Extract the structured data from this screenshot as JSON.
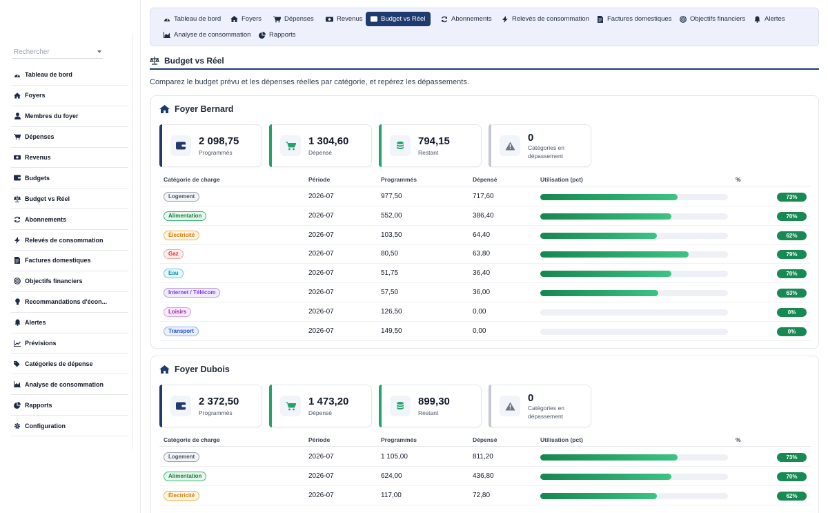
{
  "sidebar": {
    "search_placeholder": "Rechercher",
    "items": [
      {
        "label": "Tableau de bord",
        "icon": "gauge-icon"
      },
      {
        "label": "Foyers",
        "icon": "home-icon"
      },
      {
        "label": "Membres du foyer",
        "icon": "user-icon"
      },
      {
        "label": "Dépenses",
        "icon": "cart-icon"
      },
      {
        "label": "Revenus",
        "icon": "money-icon"
      },
      {
        "label": "Budgets",
        "icon": "wallet-icon"
      },
      {
        "label": "Budget vs Réel",
        "icon": "scale-icon"
      },
      {
        "label": "Abonnements",
        "icon": "sync-icon"
      },
      {
        "label": "Relevés de consommation",
        "icon": "bolt-icon"
      },
      {
        "label": "Factures domestiques",
        "icon": "invoice-icon"
      },
      {
        "label": "Objectifs financiers",
        "icon": "target-icon"
      },
      {
        "label": "Recommandations d'écon...",
        "icon": "lightbulb-icon"
      },
      {
        "label": "Alertes",
        "icon": "bell-icon"
      },
      {
        "label": "Prévisions",
        "icon": "chart-line-icon"
      },
      {
        "label": "Catégories de dépense",
        "icon": "tags-icon"
      },
      {
        "label": "Analyse de consommation",
        "icon": "chart-area-icon"
      },
      {
        "label": "Rapports",
        "icon": "pie-icon"
      },
      {
        "label": "Configuration",
        "icon": "gear-icon"
      }
    ]
  },
  "topnav": {
    "items": [
      {
        "label": "Tableau de bord",
        "icon": "gauge-icon"
      },
      {
        "label": "Foyers",
        "icon": "home-icon"
      },
      {
        "label": "Dépenses",
        "icon": "cart-icon"
      },
      {
        "label": "Revenus",
        "icon": "money-icon"
      },
      {
        "label": "Budget vs Réel",
        "icon": "wallet-icon",
        "active": true
      },
      {
        "label": "Abonnements",
        "icon": "sync-icon"
      },
      {
        "label": "Relevés de consommation",
        "icon": "bolt-icon"
      },
      {
        "label": "Factures domestiques",
        "icon": "invoice-icon"
      },
      {
        "label": "Objectifs financiers",
        "icon": "target-icon"
      },
      {
        "label": "Alertes",
        "icon": "bell-icon"
      },
      {
        "label": "Analyse de consommation",
        "icon": "chart-area-icon"
      },
      {
        "label": "Rapports",
        "icon": "pie-icon"
      }
    ]
  },
  "page": {
    "title": "Budget vs Réel",
    "description": "Comparez le budget prévu et les dépenses réelles par catégorie, et repérez les dépassements."
  },
  "table_headers": {
    "category": "Catégorie de charge",
    "period": "Période",
    "planned": "Programmés",
    "spent": "Dépensé",
    "usage": "Utilisation (pct)",
    "pct": "%"
  },
  "colors": {
    "primary": "#1f3a6e",
    "success": "#178a54",
    "muted": "#9ca3af"
  },
  "households": [
    {
      "name": "Foyer Bernard",
      "kpis": {
        "planned": {
          "value": "2 098,75",
          "label": "Programmés"
        },
        "spent": {
          "value": "1 304,60",
          "label": "Dépensé"
        },
        "remaining": {
          "value": "794,15",
          "label": "Restant"
        },
        "overruns": {
          "value": "0",
          "label": "Catégories en dépassement"
        }
      },
      "rows": [
        {
          "category": "Logement",
          "period": "2026-07",
          "planned": "977,50",
          "spent": "717,60",
          "pct": 73,
          "pct_label": "73%"
        },
        {
          "category": "Alimentation",
          "period": "2026-07",
          "planned": "552,00",
          "spent": "386,40",
          "pct": 70,
          "pct_label": "70%"
        },
        {
          "category": "Électricité",
          "period": "2026-07",
          "planned": "103,50",
          "spent": "64,40",
          "pct": 62,
          "pct_label": "62%"
        },
        {
          "category": "Gaz",
          "period": "2026-07",
          "planned": "80,50",
          "spent": "63,80",
          "pct": 79,
          "pct_label": "79%"
        },
        {
          "category": "Eau",
          "period": "2026-07",
          "planned": "51,75",
          "spent": "36,40",
          "pct": 70,
          "pct_label": "70%"
        },
        {
          "category": "Internet / Télécom",
          "period": "2026-07",
          "planned": "57,50",
          "spent": "36,00",
          "pct": 63,
          "pct_label": "63%"
        },
        {
          "category": "Loisirs",
          "period": "2026-07",
          "planned": "126,50",
          "spent": "0,00",
          "pct": 0,
          "pct_label": "0%"
        },
        {
          "category": "Transport",
          "period": "2026-07",
          "planned": "149,50",
          "spent": "0,00",
          "pct": 0,
          "pct_label": "0%"
        }
      ]
    },
    {
      "name": "Foyer Dubois",
      "kpis": {
        "planned": {
          "value": "2 372,50",
          "label": "Programmés"
        },
        "spent": {
          "value": "1 473,20",
          "label": "Dépensé"
        },
        "remaining": {
          "value": "899,30",
          "label": "Restant"
        },
        "overruns": {
          "value": "0",
          "label": "Catégories en dépassement"
        }
      },
      "rows": [
        {
          "category": "Logement",
          "period": "2026-07",
          "planned": "1 105,00",
          "spent": "811,20",
          "pct": 73,
          "pct_label": "73%"
        },
        {
          "category": "Alimentation",
          "period": "2026-07",
          "planned": "624,00",
          "spent": "436,80",
          "pct": 70,
          "pct_label": "70%"
        },
        {
          "category": "Électricité",
          "period": "2026-07",
          "planned": "117,00",
          "spent": "72,80",
          "pct": 62,
          "pct_label": "62%"
        }
      ]
    }
  ],
  "tag_colors": {
    "Logement": [
      "#f3f4f6",
      "#9ca3af",
      "#4b5563"
    ],
    "Alimentation": [
      "#e9f8ef",
      "#34b870",
      "#15803d"
    ],
    "Électricité": [
      "#fff7e6",
      "#f5b041",
      "#d97706"
    ],
    "Gaz": [
      "#fdeeee",
      "#f3a3a3",
      "#dc2626"
    ],
    "Eau": [
      "#e8f7fd",
      "#67c7ea",
      "#0891b2"
    ],
    "Internet / Télécom": [
      "#f1ecfd",
      "#b39ae8",
      "#7c3aed"
    ],
    "Loisirs": [
      "#f8ecfc",
      "#d6a0ec",
      "#a21caf"
    ],
    "Transport": [
      "#eaf1fd",
      "#8db2ee",
      "#1d4ed8"
    ]
  }
}
